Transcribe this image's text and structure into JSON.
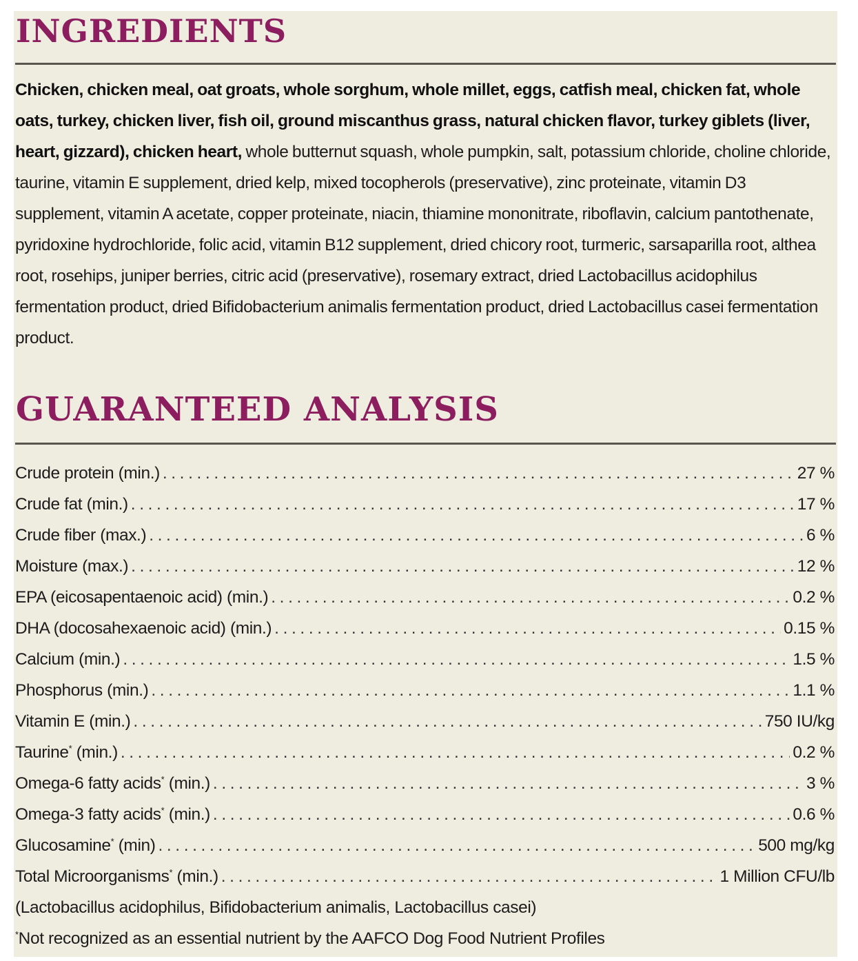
{
  "ingredients": {
    "heading": "INGREDIENTS",
    "bold_text": "Chicken, chicken meal, oat groats, whole sorghum, whole millet, eggs, catfish meal, chicken fat, whole oats, turkey, chicken liver, fish oil, ground miscanthus grass, natural chicken flavor, turkey giblets (liver, heart, gizzard), chicken heart,",
    "regular_text": " whole butternut squash, whole pumpkin, salt, potassium chloride, choline chloride, taurine, vitamin E supplement, dried kelp, mixed tocopherols (preservative), zinc proteinate, vitamin D3 supplement, vitamin A acetate, copper proteinate, niacin, thiamine mononitrate, riboflavin, calcium pantothenate, pyridoxine hydrochloride, folic acid, vitamin B12 supplement, dried chicory root, turmeric, sarsaparilla root, althea root, rosehips, juniper berries, citric acid (preservative), rosemary extract, dried Lactobacillus acidophilus fermentation product, dried Bifidobacterium animalis fermentation product, dried Lactobacillus casei fermentation product."
  },
  "analysis": {
    "heading": "GUARANTEED ANALYSIS",
    "rows": [
      {
        "label": "Crude protein (min.)",
        "value": "27 %"
      },
      {
        "label": "Crude fat (min.)",
        "value": "17 %"
      },
      {
        "label": "Crude fiber (max.)",
        "value": "6 %"
      },
      {
        "label": "Moisture (max.)",
        "value": "12 %"
      },
      {
        "label": "EPA (eicosapentaenoic acid) (min.)",
        "value": "0.2 %"
      },
      {
        "label": "DHA (docosahexaenoic acid) (min.)",
        "value": "0.15 %"
      },
      {
        "label": "Calcium (min.)",
        "value": "1.5 %"
      },
      {
        "label": "Phosphorus (min.)",
        "value": "1.1 %"
      },
      {
        "label": "Vitamin E (min.)",
        "value": "750 IU/kg"
      },
      {
        "label": "Taurine",
        "mark": "*",
        "suffix": " (min.)",
        "value": "0.2 %"
      },
      {
        "label": "Omega-6 fatty acids",
        "mark": "*",
        "suffix": " (min.)",
        "value": "3 %"
      },
      {
        "label": "Omega-3 fatty acids",
        "mark": "*",
        "suffix": " (min.)",
        "value": "0.6 %"
      },
      {
        "label": "Glucosamine",
        "mark": "*",
        "suffix": " (min)",
        "value": "500 mg/kg"
      },
      {
        "label": "Total Microorganisms",
        "mark": "*",
        "suffix": " (min.)",
        "value": "1 Million CFU/lb"
      }
    ],
    "strains_note": "(Lactobacillus acidophilus, Bifidobacterium animalis, Lactobacillus casei)",
    "footnote_mark": "*",
    "footnote_text": "Not recognized as an essential nutrient by the AAFCO Dog Food Nutrient Profiles"
  }
}
